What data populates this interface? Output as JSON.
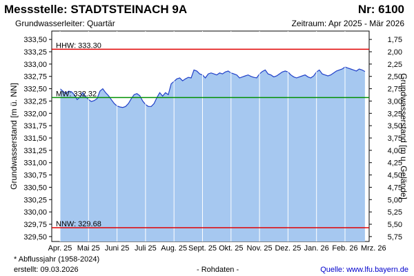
{
  "header": {
    "station": "Messstelle: STADTSTEINACH 9A",
    "number": "Nr: 6100",
    "aquifer": "Grundwasserleiter: Quartär",
    "period": "Zeitraum: Apr 2025 - Mär 2026"
  },
  "footer": {
    "note": "* Abflussjahr (1958-2024)",
    "created": "erstellt:  09.03.2026",
    "rawdata": "- Rohdaten -",
    "source": "Quelle: www.lfu.bayern.de"
  },
  "colors": {
    "area": "#a6c8f0",
    "line": "#1f3fc8",
    "hhw": "#e00000",
    "mw": "#009000",
    "nnw": "#e00000",
    "grid": "#ffffff"
  },
  "chart_data": {
    "type": "area",
    "ylabel": "Grundwasserstand [m ü. NN]",
    "ylabel_right": "Grundwasserstand [m u. Gelände]",
    "ylim": [
      329.4,
      333.67
    ],
    "yticks": [
      "333,50",
      "333,25",
      "333,00",
      "332,75",
      "332,50",
      "332,25",
      "332,00",
      "331,75",
      "331,50",
      "331,25",
      "331,00",
      "330,75",
      "330,50",
      "330,25",
      "330,00",
      "329,75",
      "329,50"
    ],
    "yticks_right": [
      "1,75",
      "2,00",
      "2,25",
      "2,50",
      "2,75",
      "3,00",
      "3,25",
      "3,50",
      "3,75",
      "4,00",
      "4,25",
      "4,50",
      "4,75",
      "5,00",
      "5,25",
      "5,50",
      "5,75"
    ],
    "xlabels": [
      "Apr. 25",
      "Mai 25",
      "Juni 25",
      "Juli 25",
      "Aug. 25",
      "Sept. 25",
      "Okt. 25",
      "Nov. 25",
      "Dez. 25",
      "Jan. 26",
      "Feb. 26",
      "Mrz. 26"
    ],
    "grid": true,
    "reference_lines": [
      {
        "label": "HHW: 333.30",
        "value": 333.3,
        "color_key": "hhw"
      },
      {
        "label": "MW: 332.32",
        "value": 332.32,
        "color_key": "mw"
      },
      {
        "label": "NNW: 329.68",
        "value": 329.68,
        "color_key": "nnw"
      }
    ],
    "series": [
      {
        "x": [
          0,
          0.1,
          0.2,
          0.3,
          0.4,
          0.5,
          0.6,
          0.7,
          0.8,
          0.9,
          1.0,
          1.1,
          1.2,
          1.3,
          1.4,
          1.5,
          1.6,
          1.7,
          1.8,
          1.9,
          2.0,
          2.1,
          2.2,
          2.3,
          2.4,
          2.5,
          2.6,
          2.7,
          2.8,
          2.9,
          3.0,
          3.1,
          3.2,
          3.3,
          3.4,
          3.5,
          3.6,
          3.7,
          3.8,
          3.9,
          4.0,
          4.1,
          4.2,
          4.3,
          4.4,
          4.5,
          4.6,
          4.7,
          4.8,
          4.9,
          5.0,
          5.1,
          5.2,
          5.3,
          5.4,
          5.5,
          5.6,
          5.7,
          5.8,
          5.9,
          6.0,
          6.1,
          6.2,
          6.3,
          6.4,
          6.5,
          6.6,
          6.7,
          6.8,
          6.9,
          7.0,
          7.1,
          7.2,
          7.3,
          7.4,
          7.5,
          7.6,
          7.7,
          7.8,
          7.9,
          8.0,
          8.1,
          8.2,
          8.3,
          8.4,
          8.5,
          8.6,
          8.7,
          8.8,
          8.9,
          9.0,
          9.1,
          9.2,
          9.3,
          9.4,
          9.5,
          9.6,
          9.7,
          9.8,
          9.9,
          10.0,
          10.1,
          10.2,
          10.3,
          10.4,
          10.5,
          10.6,
          10.7
        ],
        "y": [
          332.5,
          332.45,
          332.4,
          332.45,
          332.44,
          332.38,
          332.28,
          332.33,
          332.42,
          332.34,
          332.28,
          332.24,
          332.26,
          332.3,
          332.45,
          332.5,
          332.42,
          332.36,
          332.28,
          332.2,
          332.15,
          332.13,
          332.12,
          332.14,
          332.2,
          332.3,
          332.38,
          332.4,
          332.36,
          332.25,
          332.18,
          332.14,
          332.14,
          332.2,
          332.32,
          332.42,
          332.35,
          332.42,
          332.38,
          332.6,
          332.65,
          332.7,
          332.72,
          332.66,
          332.7,
          332.73,
          332.72,
          332.88,
          332.86,
          332.8,
          332.78,
          332.72,
          332.8,
          332.82,
          332.8,
          332.78,
          332.82,
          332.8,
          332.84,
          332.86,
          332.82,
          332.8,
          332.78,
          332.72,
          332.74,
          332.76,
          332.78,
          332.75,
          332.73,
          332.72,
          332.8,
          332.85,
          332.88,
          332.8,
          332.78,
          332.74,
          332.76,
          332.8,
          332.84,
          332.86,
          332.84,
          332.78,
          332.74,
          332.72,
          332.74,
          332.76,
          332.78,
          332.74,
          332.72,
          332.76,
          332.84,
          332.88,
          332.8,
          332.78,
          332.76,
          332.78,
          332.82,
          332.86,
          332.88,
          332.9,
          332.94,
          332.92,
          332.9,
          332.88,
          332.86,
          332.9,
          332.88,
          332.85
        ]
      }
    ]
  }
}
